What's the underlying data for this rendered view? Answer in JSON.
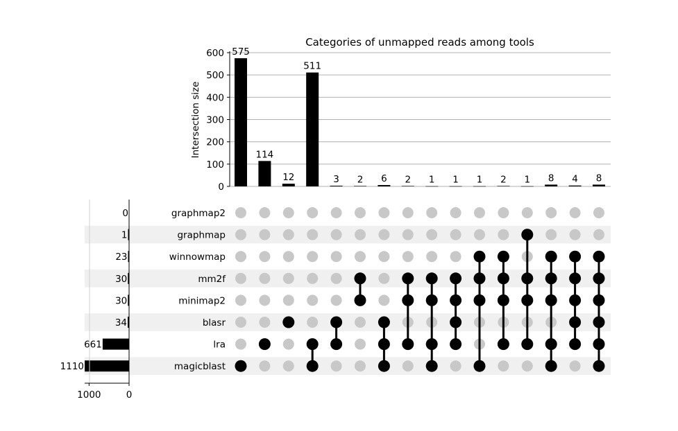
{
  "chart_data": {
    "type": "upset",
    "title": "Categories of unmapped reads among tools",
    "ylabel": "Intersection size",
    "ylim": [
      0,
      600
    ],
    "yticks": [
      0,
      100,
      200,
      300,
      400,
      500,
      600
    ],
    "set_size_ticks": [
      1000,
      0
    ],
    "set_size_max": 1110,
    "sets": [
      {
        "name": "graphmap2",
        "size": 0
      },
      {
        "name": "graphmap",
        "size": 1
      },
      {
        "name": "winnowmap",
        "size": 23
      },
      {
        "name": "mm2f",
        "size": 30
      },
      {
        "name": "minimap2",
        "size": 30
      },
      {
        "name": "blasr",
        "size": 34
      },
      {
        "name": "lra",
        "size": 661
      },
      {
        "name": "magicblast",
        "size": 1110
      }
    ],
    "intersections": [
      {
        "value": 575,
        "members": [
          "magicblast"
        ]
      },
      {
        "value": 114,
        "members": [
          "lra"
        ]
      },
      {
        "value": 12,
        "members": [
          "blasr"
        ]
      },
      {
        "value": 511,
        "members": [
          "lra",
          "magicblast"
        ]
      },
      {
        "value": 3,
        "members": [
          "blasr",
          "lra"
        ]
      },
      {
        "value": 2,
        "members": [
          "mm2f",
          "minimap2"
        ]
      },
      {
        "value": 6,
        "members": [
          "blasr",
          "lra",
          "magicblast"
        ]
      },
      {
        "value": 2,
        "members": [
          "mm2f",
          "minimap2",
          "lra"
        ]
      },
      {
        "value": 1,
        "members": [
          "mm2f",
          "minimap2",
          "lra",
          "magicblast"
        ]
      },
      {
        "value": 1,
        "members": [
          "mm2f",
          "minimap2",
          "blasr",
          "lra"
        ]
      },
      {
        "value": 1,
        "members": [
          "winnowmap",
          "mm2f",
          "minimap2",
          "magicblast"
        ]
      },
      {
        "value": 2,
        "members": [
          "winnowmap",
          "mm2f",
          "minimap2",
          "lra"
        ]
      },
      {
        "value": 1,
        "members": [
          "graphmap",
          "mm2f",
          "minimap2",
          "lra"
        ]
      },
      {
        "value": 8,
        "members": [
          "winnowmap",
          "mm2f",
          "minimap2",
          "lra",
          "magicblast"
        ]
      },
      {
        "value": 4,
        "members": [
          "winnowmap",
          "mm2f",
          "minimap2",
          "blasr",
          "lra"
        ]
      },
      {
        "value": 8,
        "members": [
          "winnowmap",
          "mm2f",
          "minimap2",
          "blasr",
          "lra",
          "magicblast"
        ]
      }
    ],
    "colors": {
      "bar": "#000000",
      "active_dot": "#000000",
      "inactive_dot": "#c8c8c8",
      "shade_row": "#f0f0f0",
      "grid": "#b0b0b0"
    }
  }
}
